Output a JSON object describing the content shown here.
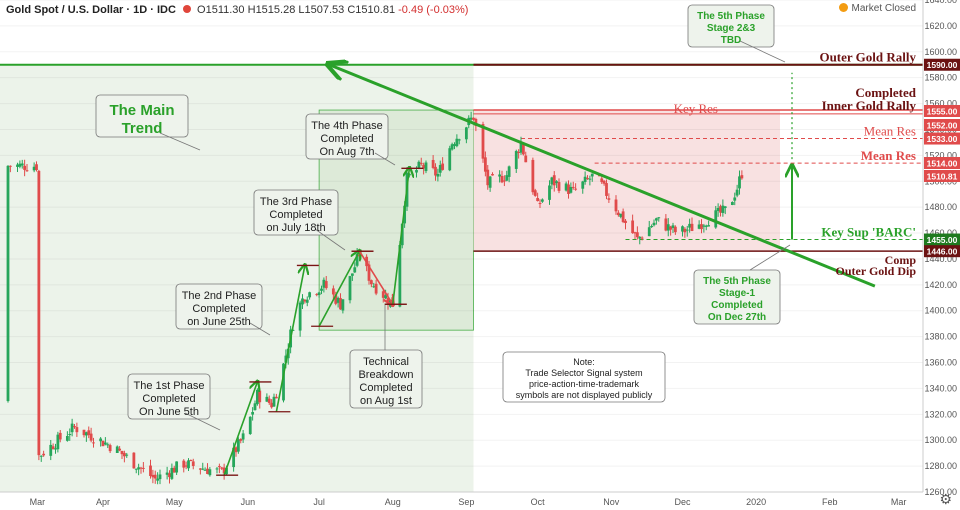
{
  "header": {
    "symbol": "Gold Spot / U.S. Dollar · 1D · IDC",
    "open_label": "O",
    "open": "1511.30",
    "high_label": "H",
    "high": "1515.28",
    "low_label": "L",
    "low": "1507.53",
    "close_label": "C",
    "close": "1510.81",
    "change": "-0.49 (-0.03%)",
    "market_status": "Market Closed"
  },
  "colors": {
    "up": "#26a65b",
    "down": "#e04b4b",
    "trend": "#2aa12a",
    "outer": "#6b1212",
    "res": "#e04b4b",
    "sup": "#2aa12a",
    "green_zone": "#e6efe3",
    "red_zone": "#f7dede"
  },
  "chart_data": {
    "type": "candlestick",
    "ylim": [
      1260,
      1640
    ],
    "y_ticks": [
      "1640.00",
      "1620.00",
      "1600.00",
      "1580.00",
      "1560.00",
      "1540.00",
      "1520.00",
      "1500.00",
      "1480.00",
      "1460.00",
      "1440.00",
      "1420.00",
      "1400.00",
      "1380.00",
      "1360.00",
      "1340.00",
      "1320.00",
      "1300.00",
      "1280.00",
      "1260.00"
    ],
    "x_ticks": [
      "Mar",
      "Apr",
      "May",
      "Jun",
      "Jul",
      "Aug",
      "Sep",
      "Oct",
      "Nov",
      "Dec",
      "2020",
      "Feb",
      "Mar"
    ],
    "levels": [
      {
        "name": "Outer Gold Rally",
        "value": 1590,
        "label": "1590.00"
      },
      {
        "name": "Completed Inner Gold Rally",
        "value": 1555,
        "label": "1555.00"
      },
      {
        "name": "Key Res",
        "value": 1552,
        "label": "1552.00"
      },
      {
        "name": "Mean Res",
        "value": 1533,
        "label": "1533.00"
      },
      {
        "name": "Mean Res",
        "value": 1514,
        "label": "1514.00"
      },
      {
        "name": "Last",
        "value": 1510.81,
        "label": "1510.81"
      },
      {
        "name": "Key Sup 'BARC'",
        "value": 1455,
        "label": "1455.00"
      },
      {
        "name": "Comp Outer Gold Dip",
        "value": 1446,
        "label": "1446.00"
      }
    ],
    "anchors": [
      {
        "date": "Feb 20",
        "value": 1330
      },
      {
        "date": "Mar 05",
        "value": 1288
      },
      {
        "date": "Mar 20",
        "value": 1310
      },
      {
        "date": "Apr 05",
        "value": 1295
      },
      {
        "date": "Apr 23",
        "value": 1270
      },
      {
        "date": "May 05",
        "value": 1282
      },
      {
        "date": "May 21",
        "value": 1275
      },
      {
        "date": "May 31",
        "value": 1305
      },
      {
        "date": "Jun 05",
        "value": 1335
      },
      {
        "date": "Jun 11",
        "value": 1328
      },
      {
        "date": "Jun 14",
        "value": 1342
      },
      {
        "date": "Jun 21",
        "value": 1398
      },
      {
        "date": "Jun 25",
        "value": 1412
      },
      {
        "date": "Jul 03",
        "value": 1420
      },
      {
        "date": "Jul 10",
        "value": 1405
      },
      {
        "date": "Jul 18",
        "value": 1444
      },
      {
        "date": "Jul 23",
        "value": 1422
      },
      {
        "date": "Aug 01",
        "value": 1405
      },
      {
        "date": "Aug 07",
        "value": 1502
      },
      {
        "date": "Aug 13",
        "value": 1512
      },
      {
        "date": "Aug 20",
        "value": 1505
      },
      {
        "date": "Aug 26",
        "value": 1530
      },
      {
        "date": "Sep 04",
        "value": 1550
      },
      {
        "date": "Sep 10",
        "value": 1498
      },
      {
        "date": "Sep 18",
        "value": 1505
      },
      {
        "date": "Sep 24",
        "value": 1530
      },
      {
        "date": "Oct 01",
        "value": 1480
      },
      {
        "date": "Oct 07",
        "value": 1500
      },
      {
        "date": "Oct 16",
        "value": 1492
      },
      {
        "date": "Oct 25",
        "value": 1505
      },
      {
        "date": "Nov 07",
        "value": 1468
      },
      {
        "date": "Nov 12",
        "value": 1455
      },
      {
        "date": "Nov 20",
        "value": 1470
      },
      {
        "date": "Nov 29",
        "value": 1460
      },
      {
        "date": "Dec 06",
        "value": 1465
      },
      {
        "date": "Dec 13",
        "value": 1472
      },
      {
        "date": "Dec 20",
        "value": 1478
      },
      {
        "date": "Dec 24",
        "value": 1495
      },
      {
        "date": "Dec 27",
        "value": 1512
      }
    ],
    "main_trend_arrow": {
      "from": {
        "date": "Feb 20",
        "value": 1419
      },
      "to": {
        "date": "Jan 15",
        "value": 1590
      }
    },
    "phase_arrows": [
      {
        "from": {
          "date": "May 22",
          "value": 1273
        },
        "to": {
          "date": "Jun 05",
          "value": 1345
        },
        "color": "green"
      },
      {
        "from": {
          "date": "Jun 13",
          "value": 1322
        },
        "to": {
          "date": "Jun 25",
          "value": 1435
        },
        "color": "green"
      },
      {
        "from": {
          "date": "Jul 01",
          "value": 1388
        },
        "to": {
          "date": "Jul 18",
          "value": 1446
        },
        "color": "green"
      },
      {
        "from": {
          "date": "Jul 18",
          "value": 1446
        },
        "to": {
          "date": "Aug 01",
          "value": 1405
        },
        "color": "red"
      },
      {
        "from": {
          "date": "Aug 01",
          "value": 1405
        },
        "to": {
          "date": "Aug 08",
          "value": 1510
        },
        "color": "green"
      }
    ],
    "annotations": [
      {
        "id": "main-trend",
        "lines": [
          "The Main",
          "Trend"
        ]
      },
      {
        "id": "phase-1",
        "lines": [
          "The 1st Phase",
          "Completed",
          "On June 5th"
        ]
      },
      {
        "id": "phase-2",
        "lines": [
          "The 2nd Phase",
          "Completed",
          "on June 25th"
        ]
      },
      {
        "id": "phase-3",
        "lines": [
          "The 3rd Phase",
          "Completed",
          "on July 18th"
        ]
      },
      {
        "id": "phase-4",
        "lines": [
          "The 4th Phase",
          "Completed",
          "On Aug 7th"
        ]
      },
      {
        "id": "breakdown",
        "lines": [
          "Technical",
          "Breakdown",
          "Completed",
          "on Aug 1st"
        ]
      },
      {
        "id": "phase-5-stage1",
        "lines": [
          "The 5th Phase",
          "Stage-1",
          "Completed",
          "On Dec 27th"
        ]
      },
      {
        "id": "phase-5-stage23",
        "lines": [
          "The 5th Phase",
          "Stage 2&3",
          "TBD"
        ]
      },
      {
        "id": "note",
        "lines": [
          "Note:",
          "Trade Selector Signal system",
          "price-action-time-trademark",
          "symbols are not displayed publicly"
        ]
      }
    ],
    "level_labels": {
      "outer_rally": "Outer Gold Rally",
      "inner_rally": [
        "Completed",
        "Inner Gold Rally"
      ],
      "key_res": "Key Res",
      "mean_res_1": "Mean Res",
      "mean_res_2": "Mean Res",
      "key_sup": "Key Sup 'BARC'",
      "outer_dip": [
        "Comp",
        "Outer Gold Dip"
      ]
    }
  }
}
